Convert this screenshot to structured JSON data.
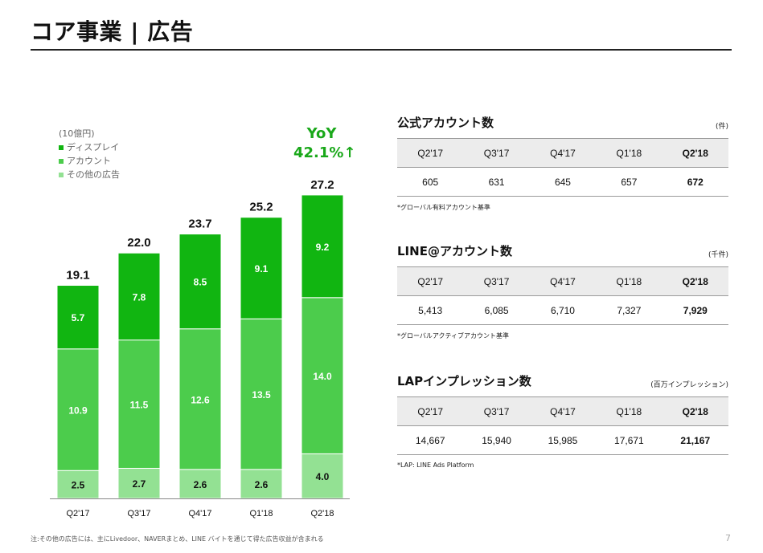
{
  "header": {
    "title": "コア事業 | 広告"
  },
  "chart_data": {
    "type": "stacked-bar",
    "unit_label": "(10億円)",
    "categories": [
      "Q2'17",
      "Q3'17",
      "Q4'17",
      "Q1'18",
      "Q2'18"
    ],
    "series": [
      {
        "name": "その他の広告",
        "color": "#93e193",
        "values": [
          2.5,
          2.7,
          2.6,
          2.6,
          4.0
        ]
      },
      {
        "name": "アカウント",
        "color": "#4ccc4c",
        "values": [
          10.9,
          11.5,
          12.6,
          13.5,
          14.0
        ]
      },
      {
        "name": "ディスプレイ",
        "color": "#11b511",
        "values": [
          5.7,
          7.8,
          8.5,
          9.1,
          9.2
        ]
      }
    ],
    "totals": [
      "19.1",
      "22.0",
      "23.7",
      "25.2",
      "27.2"
    ],
    "legend_order": [
      "ディスプレイ",
      "アカウント",
      "その他の広告"
    ],
    "yoy": {
      "label": "YoY",
      "value": "42.1%↑"
    }
  },
  "tables": [
    {
      "title": "公式アカウント数",
      "unit": "(件)",
      "columns": [
        "Q2'17",
        "Q3'17",
        "Q4'17",
        "Q1'18",
        "Q2'18"
      ],
      "values": [
        "605",
        "631",
        "645",
        "657",
        "672"
      ],
      "note": "*グローバル有料アカウント基準"
    },
    {
      "title": "LINE@アカウント数",
      "unit": "(千件)",
      "columns": [
        "Q2'17",
        "Q3'17",
        "Q4'17",
        "Q1'18",
        "Q2'18"
      ],
      "values": [
        "5,413",
        "6,085",
        "6,710",
        "7,327",
        "7,929"
      ],
      "note": "*グローバルアクティブアカウント基準"
    },
    {
      "title": "LAPインプレッション数",
      "unit": "(百万インプレッション)",
      "columns": [
        "Q2'17",
        "Q3'17",
        "Q4'17",
        "Q1'18",
        "Q2'18"
      ],
      "values": [
        "14,667",
        "15,940",
        "15,985",
        "17,671",
        "21,167"
      ],
      "note": "*LAP: LINE Ads Platform"
    }
  ],
  "footer": {
    "note": "注:その他の広告には、主にLivedoor、NAVERまとめ、LINE バイトを通じて得た広告収益が含まれる",
    "page": "7"
  }
}
